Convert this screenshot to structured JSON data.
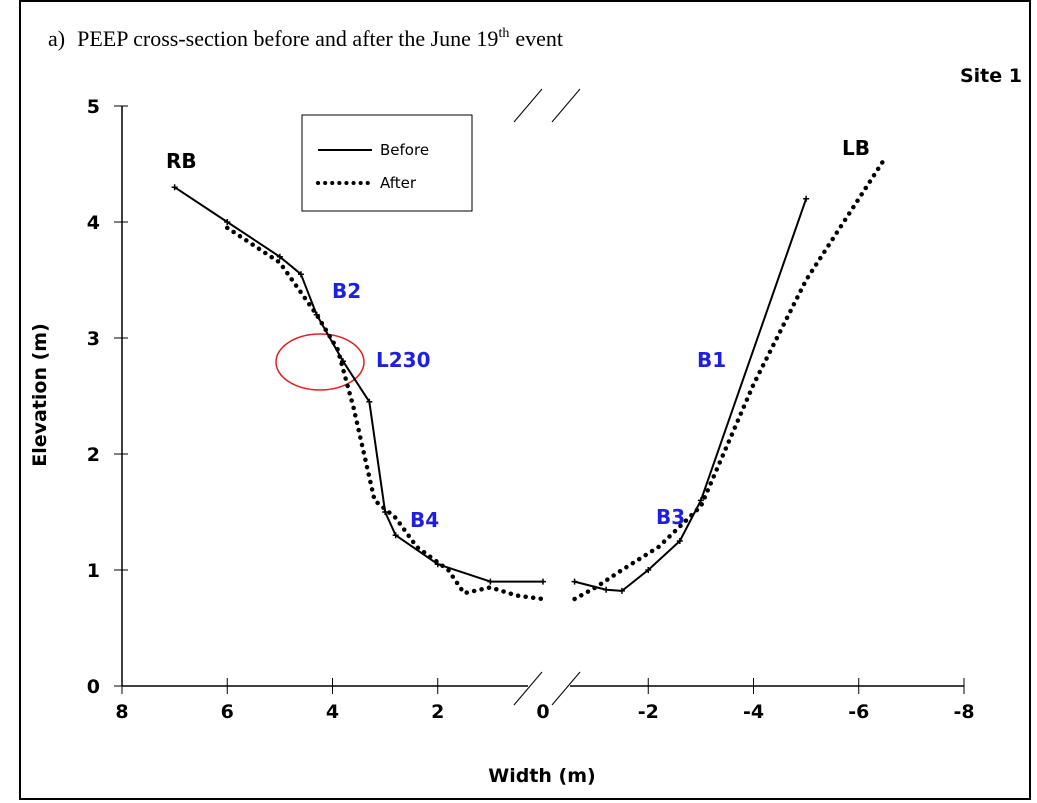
{
  "chart_data": {
    "type": "line",
    "title_prefix": "a)",
    "title": "PEEP cross-section before and after the June 19",
    "title_sup": "th",
    "title_end": "event",
    "site": "Site 1",
    "xlabel": "Width (m)",
    "ylabel": "Elevation (m)",
    "xlim": [
      8,
      -8
    ],
    "ylim": [
      0,
      5
    ],
    "xticks": [
      8,
      6,
      4,
      2,
      0,
      -2,
      -4,
      -6,
      -8
    ],
    "yticks": [
      0,
      1,
      2,
      3,
      4,
      5
    ],
    "series": [
      {
        "name": "Before",
        "color": "#000000",
        "style": "solid",
        "x": [
          7,
          6,
          5,
          4.6,
          4.3,
          3.8,
          3.3,
          3.0,
          2.8,
          2,
          1,
          0,
          null,
          -0.6,
          -1.2,
          -1.5,
          -2,
          -2.6,
          -3,
          -5
        ],
        "values": [
          4.3,
          4.0,
          3.7,
          3.55,
          3.2,
          2.8,
          2.45,
          1.5,
          1.3,
          1.05,
          0.9,
          0.9,
          null,
          0.9,
          0.83,
          0.82,
          1.0,
          1.25,
          1.6,
          4.2
        ]
      },
      {
        "name": "After",
        "color": "#000000",
        "style": "dotted",
        "x": [
          6,
          5,
          4.3,
          3.9,
          3.6,
          3.2,
          2.8,
          2.4,
          1.8,
          1.5,
          1,
          0.5,
          0,
          null,
          -0.6,
          -1,
          -1.5,
          -2.2,
          -3,
          -4,
          -5,
          -6.5
        ],
        "values": [
          3.95,
          3.65,
          3.2,
          2.9,
          2.4,
          1.6,
          1.45,
          1.2,
          1.0,
          0.8,
          0.85,
          0.78,
          0.75,
          null,
          0.75,
          0.85,
          1.0,
          1.2,
          1.55,
          2.6,
          3.5,
          4.55
        ]
      }
    ],
    "annotations": [
      {
        "text": "RB",
        "color": "#000000"
      },
      {
        "text": "LB",
        "color": "#000000"
      },
      {
        "text": "B2",
        "color": "#1f1fe0"
      },
      {
        "text": "L230",
        "color": "#1f1fe0"
      },
      {
        "text": "B1",
        "color": "#1f1fe0"
      },
      {
        "text": "B3",
        "color": "#1f1fe0"
      },
      {
        "text": "B4",
        "color": "#1f1fe0"
      }
    ]
  }
}
